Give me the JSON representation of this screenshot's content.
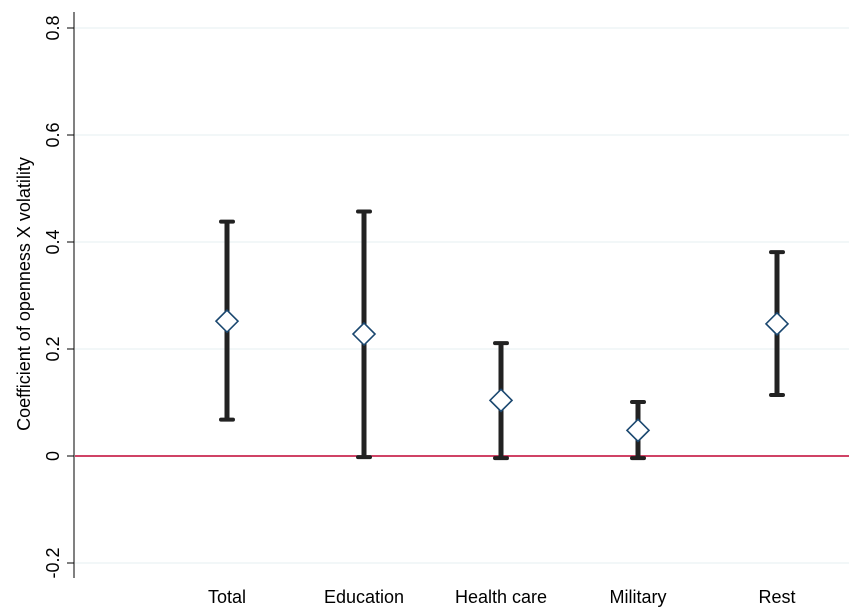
{
  "chart_data": {
    "type": "scatter",
    "title": "",
    "xlabel": "",
    "ylabel": "Coefficient of openness X volatility",
    "ylim": [
      -0.2,
      0.8
    ],
    "yticks": [
      -0.2,
      0,
      0.2,
      0.4,
      0.6,
      0.8
    ],
    "ytick_labels": [
      "-0.2",
      "0",
      "0.2",
      "0.4",
      "0.6",
      "0.8"
    ],
    "categories": [
      "Total",
      "Education",
      "Health care",
      "Military",
      "Rest"
    ],
    "estimates": [
      0.252,
      0.228,
      0.104,
      0.048,
      0.247
    ],
    "ci_low": [
      0.068,
      -0.002,
      -0.004,
      -0.004,
      0.114
    ],
    "ci_high": [
      0.438,
      0.457,
      0.211,
      0.101,
      0.381
    ],
    "reference_line": 0,
    "grid": true,
    "colors": {
      "point": "#1a476f",
      "errorbar": "#222222",
      "reference": "#c10534",
      "grid": "#eaf2f3"
    }
  }
}
